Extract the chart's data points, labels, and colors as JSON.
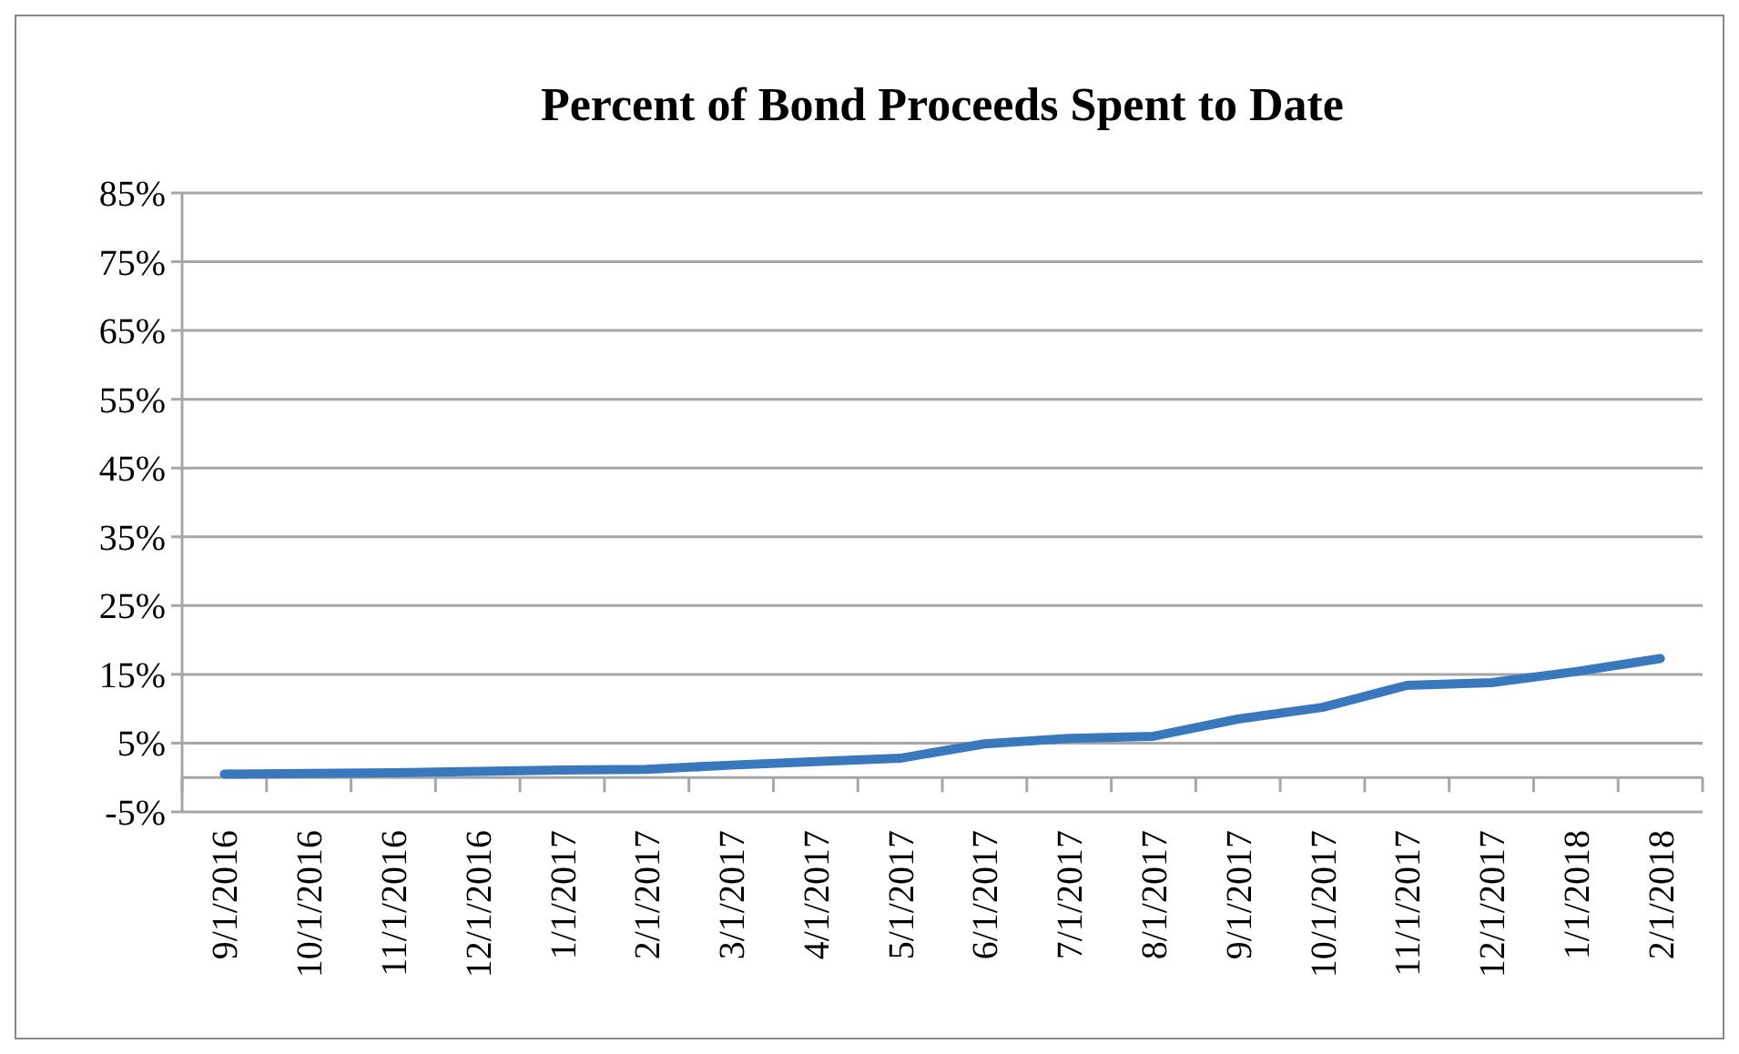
{
  "chart_data": {
    "type": "line",
    "title": "Percent of Bond Proceeds Spent to Date",
    "categories": [
      "9/1/2016",
      "10/1/2016",
      "11/1/2016",
      "12/1/2016",
      "1/1/2017",
      "2/1/2017",
      "3/1/2017",
      "4/1/2017",
      "5/1/2017",
      "6/1/2017",
      "7/1/2017",
      "8/1/2017",
      "9/1/2017",
      "10/1/2017",
      "11/1/2017",
      "12/1/2017",
      "1/1/2018",
      "2/1/2018"
    ],
    "series": [
      {
        "color": "#3a78be",
        "values": [
          0.5,
          0.6,
          0.7,
          0.9,
          1.1,
          1.2,
          1.8,
          2.3,
          2.8,
          4.9,
          5.7,
          6.0,
          8.5,
          10.2,
          13.4,
          13.8,
          15.4,
          17.3
        ]
      }
    ],
    "ylim": [
      -5,
      85
    ],
    "yticks": [
      {
        "value": -5,
        "label": "-5%"
      },
      {
        "value": 5,
        "label": "5%"
      },
      {
        "value": 15,
        "label": "15%"
      },
      {
        "value": 25,
        "label": "25%"
      },
      {
        "value": 35,
        "label": "35%"
      },
      {
        "value": 45,
        "label": "45%"
      },
      {
        "value": 55,
        "label": "55%"
      },
      {
        "value": 65,
        "label": "65%"
      },
      {
        "value": 75,
        "label": "75%"
      },
      {
        "value": 85,
        "label": "85%"
      }
    ],
    "grid": "y",
    "marker": "none",
    "line_style": "solid"
  }
}
